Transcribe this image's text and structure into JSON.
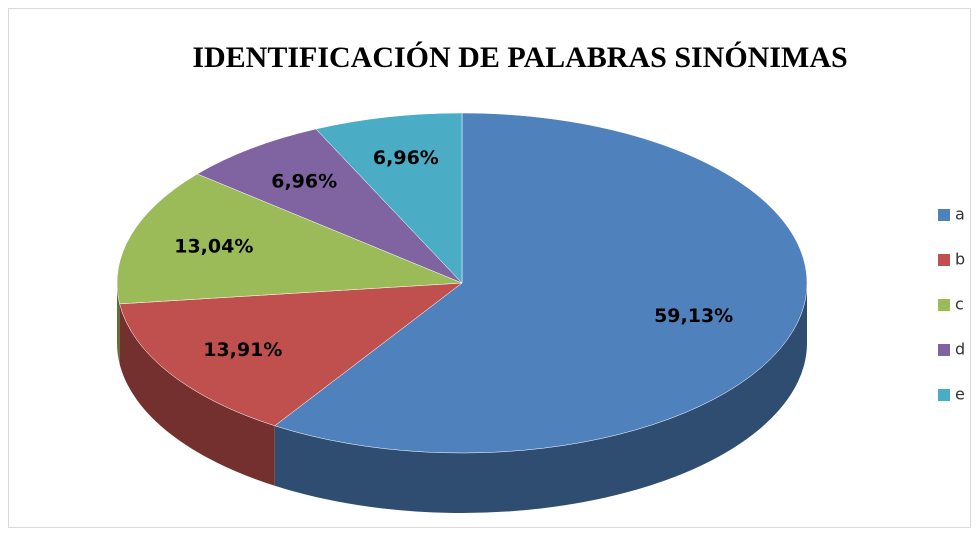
{
  "chart_data": {
    "type": "pie",
    "title": "IDENTIFICACIÓN DE PALABRAS SINÓNIMAS",
    "categories": [
      "a",
      "b",
      "c",
      "d",
      "e"
    ],
    "values": [
      59.13,
      13.91,
      13.04,
      6.96,
      6.96
    ],
    "value_labels": [
      "59,13%",
      "13,91%",
      "13,04%",
      "6,96%",
      "6,96%"
    ],
    "colors": [
      "#4f81bd",
      "#c0504d",
      "#9bbb59",
      "#8064a2",
      "#4bacc6"
    ],
    "legend": "right"
  }
}
